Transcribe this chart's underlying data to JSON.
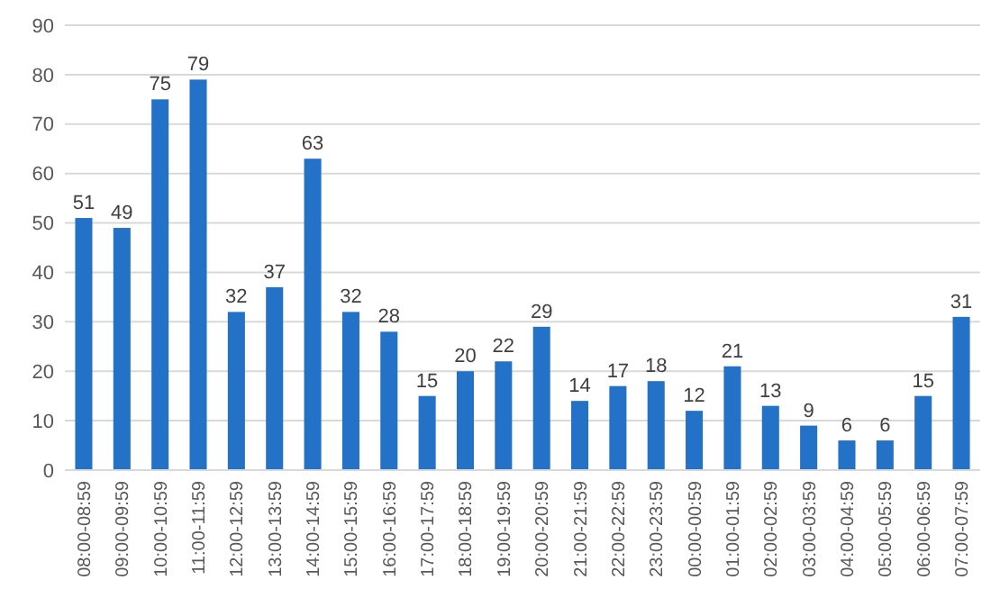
{
  "chart_data": {
    "type": "bar",
    "categories": [
      "08:00-08:59",
      "09:00-09:59",
      "10:00-10:59",
      "11:00-11:59",
      "12:00-12:59",
      "13:00-13:59",
      "14:00-14:59",
      "15:00-15:59",
      "16:00-16:59",
      "17:00-17:59",
      "18:00-18:59",
      "19:00-19:59",
      "20:00-20:59",
      "21:00-21:59",
      "22:00-22:59",
      "23:00-23:59",
      "00:00-00:59",
      "01:00-01:59",
      "02:00-02:59",
      "03:00-03:59",
      "04:00-04:59",
      "05:00-05:59",
      "06:00-06:59",
      "07:00-07:59"
    ],
    "values": [
      51,
      49,
      75,
      79,
      32,
      37,
      63,
      32,
      28,
      15,
      20,
      22,
      29,
      14,
      17,
      18,
      12,
      21,
      13,
      9,
      6,
      6,
      15,
      31
    ],
    "color": "#2472c8",
    "ylim": [
      0,
      90
    ],
    "yticks": [
      0,
      10,
      20,
      30,
      40,
      50,
      60,
      70,
      80,
      90
    ],
    "grid": "y",
    "data_labels": true
  }
}
